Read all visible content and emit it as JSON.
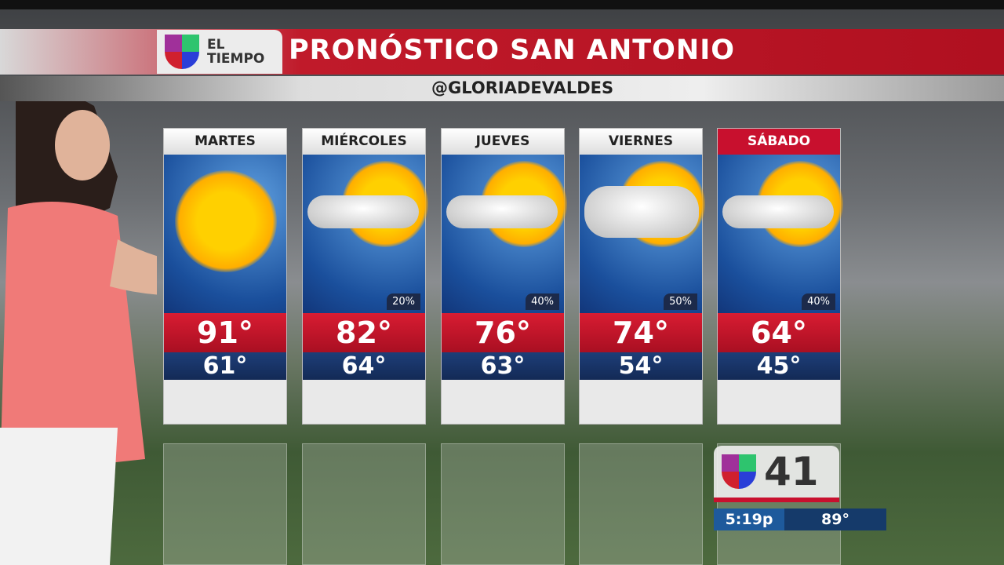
{
  "header": {
    "brand": "EL TIEMPO",
    "brand_line1": "EL",
    "brand_line2": "TIEMPO",
    "title": "PRONÓSTICO SAN ANTONIO",
    "handle": "@GLORIADEVALDES"
  },
  "forecast": [
    {
      "day": "MARTES",
      "high": "91°",
      "low": "61°",
      "precip": "",
      "icon": "sunny"
    },
    {
      "day": "MIÉRCOLES",
      "high": "82°",
      "low": "64°",
      "precip": "20%",
      "icon": "partly-cloudy"
    },
    {
      "day": "JUEVES",
      "high": "76°",
      "low": "63°",
      "precip": "40%",
      "icon": "partly-cloudy"
    },
    {
      "day": "VIERNES",
      "high": "74°",
      "low": "54°",
      "precip": "50%",
      "icon": "mostly-cloudy"
    },
    {
      "day": "SÁBADO",
      "high": "64°",
      "low": "45°",
      "precip": "40%",
      "icon": "partly-cloudy"
    }
  ],
  "station": {
    "channel": "41",
    "time": "5:19p",
    "temp": "89°"
  },
  "colors": {
    "red": "#c8102e",
    "blue": "#132a56"
  }
}
